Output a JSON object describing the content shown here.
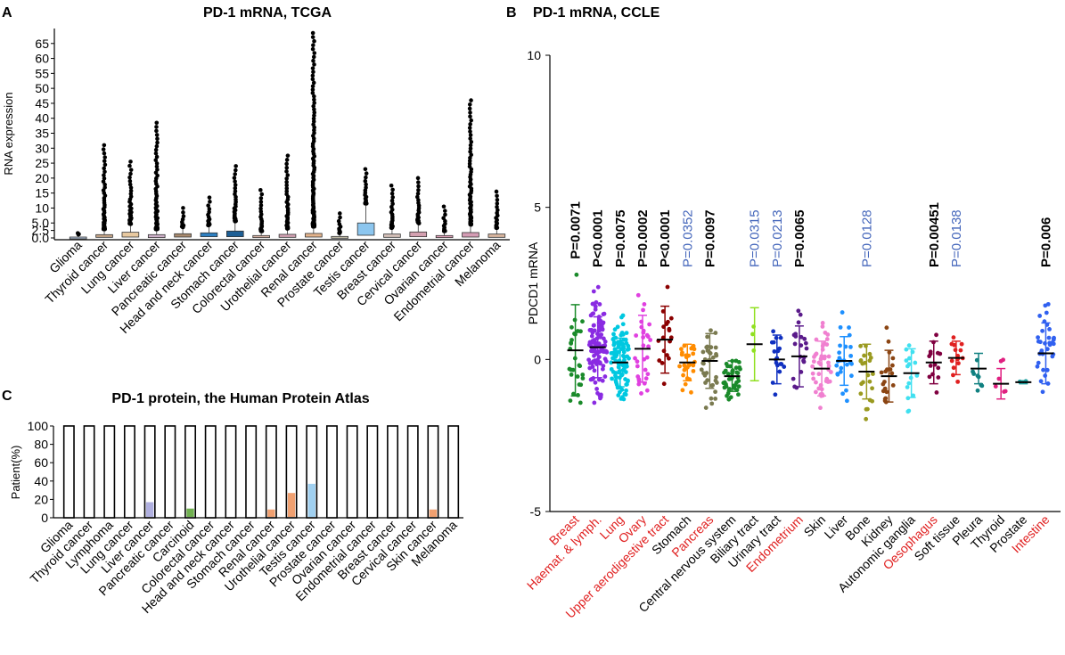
{
  "chart_data": [
    {
      "panel_letter": "A",
      "type": "box",
      "title": "PD-1 mRNA, TCGA",
      "ylabel": "RNA expression",
      "ylim": [
        0,
        70
      ],
      "yticks": [
        0.0,
        2.5,
        5.0,
        10,
        15,
        20,
        25,
        30,
        35,
        40,
        45,
        50,
        55,
        60,
        65
      ],
      "ytick_labels": [
        "0.0",
        "2.5",
        "5.0",
        "10",
        "15",
        "20",
        "25",
        "30",
        "35",
        "40",
        "45",
        "50",
        "55",
        "60",
        "65"
      ],
      "categories": [
        "Glioma",
        "Thyroid cancer",
        "Lung cancer",
        "Liver cancer",
        "Pancreatic cancer",
        "Head and neck cancer",
        "Stomach cancer",
        "Colorectal cancer",
        "Urothelial cancer",
        "Renal cancer",
        "Prostate cancer",
        "Testis cancer",
        "Breast cancer",
        "Cervical cancer",
        "Ovarian cancer",
        "Endometrial cancer",
        "Melanoma"
      ],
      "box_colors": [
        "#b8c9e0",
        "#c9a88a",
        "#e8c9a0",
        "#cdb0c8",
        "#a98b6f",
        "#2d7fc1",
        "#1d5f95",
        "#d9b4a4",
        "#d4a3b4",
        "#e4b48c",
        "#c6c0a9",
        "#8cc6ef",
        "#d4c0b8",
        "#d4a0b0",
        "#e0a0b8",
        "#d49cb4",
        "#d9b59e"
      ],
      "box_q1": [
        0.1,
        0.2,
        0.3,
        0.1,
        0.3,
        0.4,
        0.4,
        0.1,
        0.2,
        0.3,
        0.1,
        0.9,
        0.2,
        0.4,
        0.1,
        0.3,
        0.2
      ],
      "box_q3": [
        0.3,
        1.1,
        1.9,
        1.1,
        1.4,
        1.7,
        2.3,
        0.8,
        1.2,
        1.5,
        0.5,
        5.0,
        1.3,
        2.0,
        0.8,
        1.8,
        1.3
      ],
      "outlier_max": [
        1.6,
        31,
        25.5,
        38.5,
        10,
        13.5,
        24,
        16,
        27.5,
        68.5,
        8.2,
        23,
        17.5,
        20,
        10.5,
        46,
        15.5
      ]
    },
    {
      "panel_letter": "B",
      "type": "scatter",
      "title": "PD-1 mRNA, CCLE",
      "ylabel": "PDCD1 mRNA",
      "ylim": [
        -5,
        10
      ],
      "yticks": [
        -5,
        0,
        5,
        10
      ],
      "ytick_labels": [
        "-5",
        "0",
        "5",
        "10"
      ],
      "categories": [
        "Breast",
        "Haemat. & lymph.",
        "Lung",
        "Ovary",
        "Upper aerodigestive tract",
        "Stomach",
        "Pancreas",
        "Central nervous system",
        "Biliary tract",
        "Urinary tract",
        "Endometrium",
        "Skin",
        "Liver",
        "Bone",
        "Kidney",
        "Autonomic ganglia",
        "Oesophagus",
        "Soft tissue",
        "Pleura",
        "Thyroid",
        "Prostate",
        "Intestine"
      ],
      "label_colors": [
        "#e02020",
        "#e02020",
        "#e02020",
        "#e02020",
        "#e02020",
        "#000000",
        "#e02020",
        "#000000",
        "#000000",
        "#000000",
        "#e02020",
        "#000000",
        "#000000",
        "#000000",
        "#000000",
        "#000000",
        "#e02020",
        "#000000",
        "#000000",
        "#000000",
        "#000000",
        "#e02020"
      ],
      "point_colors": [
        "#1a8a2a",
        "#8a2be2",
        "#00c8e0",
        "#e040e0",
        "#8b0000",
        "#ff8c00",
        "#7a7a50",
        "#1a8a2a",
        "#90e020",
        "#1030c0",
        "#5a1a8a",
        "#f080d0",
        "#1e90ff",
        "#9a9a20",
        "#8b4513",
        "#40e0f0",
        "#800040",
        "#e02020",
        "#108080",
        "#e02080",
        "#20a0a0",
        "#3060f0"
      ],
      "means": [
        0.3,
        0.4,
        -0.1,
        0.35,
        0.65,
        -0.1,
        -0.05,
        -0.55,
        0.5,
        0.0,
        0.1,
        -0.3,
        -0.05,
        -0.4,
        -0.55,
        -0.45,
        -0.1,
        0.05,
        -0.3,
        -0.8,
        -0.75,
        0.2
      ],
      "sd": [
        1.5,
        1.0,
        0.8,
        1.1,
        1.1,
        0.6,
        0.9,
        0.5,
        1.2,
        0.8,
        1.0,
        0.9,
        0.8,
        0.9,
        0.85,
        0.8,
        0.7,
        0.55,
        0.5,
        0.5,
        0.05,
        1.0
      ],
      "n": [
        28,
        110,
        100,
        30,
        18,
        30,
        35,
        40,
        3,
        18,
        20,
        45,
        25,
        22,
        20,
        16,
        14,
        14,
        8,
        6,
        2,
        35
      ],
      "annotations": [
        {
          "category": "Breast",
          "text": "P=0.0071",
          "bold": true,
          "color": "#000000"
        },
        {
          "category": "Haemat. & lymph.",
          "text": "P<0.0001",
          "bold": true,
          "color": "#000000"
        },
        {
          "category": "Lung",
          "text": "P=0.0075",
          "bold": true,
          "color": "#000000"
        },
        {
          "category": "Ovary",
          "text": "P=0.0002",
          "bold": true,
          "color": "#000000"
        },
        {
          "category": "Upper aerodigestive tract",
          "text": "P<0.0001",
          "bold": true,
          "color": "#000000"
        },
        {
          "category": "Stomach",
          "text": "P=0.0352",
          "bold": false,
          "color": "#4466bb"
        },
        {
          "category": "Pancreas",
          "text": "P=0.0097",
          "bold": true,
          "color": "#000000"
        },
        {
          "category": "Biliary tract",
          "text": "P=0.0315",
          "bold": false,
          "color": "#4466bb"
        },
        {
          "category": "Urinary tract",
          "text": "P=0.0213",
          "bold": false,
          "color": "#4466bb"
        },
        {
          "category": "Endometrium",
          "text": "P=0.0065",
          "bold": true,
          "color": "#000000"
        },
        {
          "category": "Bone",
          "text": "P=0.0128",
          "bold": false,
          "color": "#4466bb"
        },
        {
          "category": "Oesophagus",
          "text": "P=0.00451",
          "bold": true,
          "color": "#000000"
        },
        {
          "category": "Soft tissue",
          "text": "P=0.0138",
          "bold": false,
          "color": "#4466bb"
        },
        {
          "category": "Intestine",
          "text": "P=0.006",
          "bold": true,
          "color": "#000000"
        }
      ]
    },
    {
      "panel_letter": "C",
      "type": "bar",
      "title": "PD-1 protein, the Human Protein Atlas",
      "ylabel": "Patient(%)",
      "ylim": [
        0,
        100
      ],
      "yticks": [
        0,
        20,
        40,
        60,
        80,
        100
      ],
      "ytick_labels": [
        "0",
        "20",
        "40",
        "60",
        "80",
        "100"
      ],
      "categories": [
        "Glioma",
        "Thyroid cancer",
        "Lymphoma",
        "Lung cancer",
        "Liver cancer",
        "Pancreatic cancer",
        "Carcinoid",
        "Colorectal cancer",
        "Head and neck cancer",
        "Stomach cancer",
        "Renal cancer",
        "Urothelial cancer",
        "Testis cancer",
        "Prostate cancer",
        "Ovarian cancer",
        "Endometrial cancer",
        "Breast cancer",
        "Cervical cancer",
        "Skin cancer",
        "Melanoma"
      ],
      "total_values": [
        100,
        100,
        100,
        100,
        100,
        100,
        100,
        100,
        100,
        100,
        100,
        100,
        100,
        100,
        100,
        100,
        100,
        100,
        100,
        100
      ],
      "positive_values": [
        0,
        0,
        0,
        0,
        17,
        0,
        10,
        0,
        0,
        0,
        9,
        27,
        37,
        0,
        0,
        0,
        0,
        0,
        9,
        0
      ],
      "positive_colors": [
        "#ffffff",
        "#ffffff",
        "#ffffff",
        "#ffffff",
        "#b0b0e0",
        "#ffffff",
        "#70b050",
        "#ffffff",
        "#ffffff",
        "#ffffff",
        "#f0a070",
        "#f0a070",
        "#a0d0f0",
        "#ffffff",
        "#ffffff",
        "#ffffff",
        "#ffffff",
        "#ffffff",
        "#f0a070",
        "#ffffff"
      ]
    }
  ]
}
